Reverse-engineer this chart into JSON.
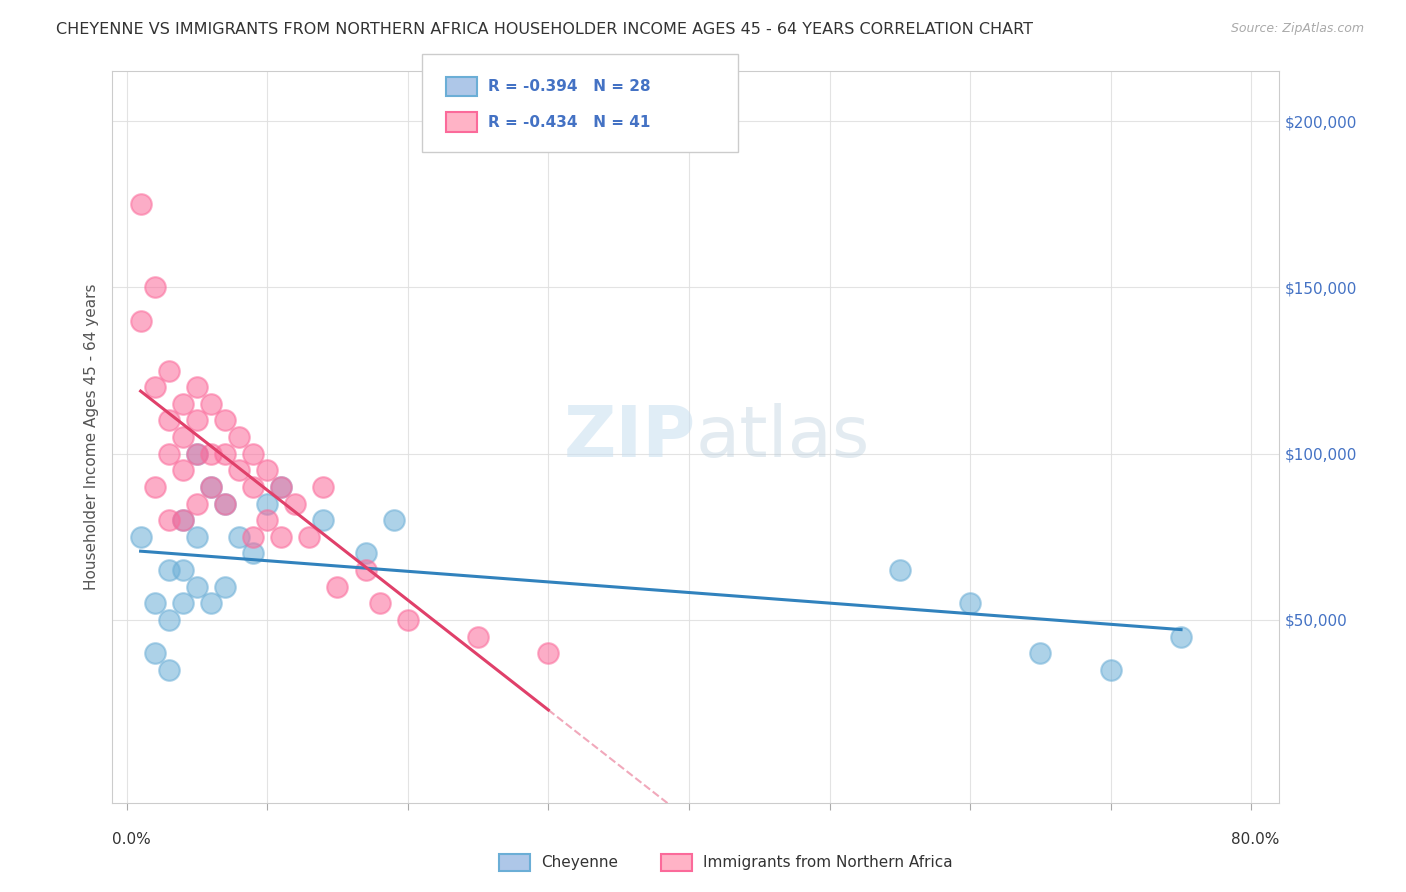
{
  "title": "CHEYENNE VS IMMIGRANTS FROM NORTHERN AFRICA HOUSEHOLDER INCOME AGES 45 - 64 YEARS CORRELATION CHART",
  "source": "Source: ZipAtlas.com",
  "ylabel": "Householder Income Ages 45 - 64 years",
  "cheyenne_R": -0.394,
  "cheyenne_N": 28,
  "immigrants_R": -0.434,
  "immigrants_N": 41,
  "cheyenne_color": "#6baed6",
  "immigrants_color": "#fb6a9a",
  "cheyenne_line_color": "#3182bd",
  "immigrants_line_color": "#e0406a",
  "watermark_zip": "ZIP",
  "watermark_atlas": "atlas",
  "cheyenne_x": [
    0.01,
    0.02,
    0.02,
    0.03,
    0.03,
    0.03,
    0.04,
    0.04,
    0.04,
    0.05,
    0.05,
    0.05,
    0.06,
    0.06,
    0.07,
    0.07,
    0.08,
    0.09,
    0.1,
    0.11,
    0.14,
    0.17,
    0.19,
    0.55,
    0.6,
    0.65,
    0.7,
    0.75
  ],
  "cheyenne_y": [
    75000,
    55000,
    40000,
    65000,
    50000,
    35000,
    80000,
    65000,
    55000,
    100000,
    75000,
    60000,
    90000,
    55000,
    85000,
    60000,
    75000,
    70000,
    85000,
    90000,
    80000,
    70000,
    80000,
    65000,
    55000,
    40000,
    35000,
    45000
  ],
  "immigrants_x": [
    0.01,
    0.01,
    0.02,
    0.02,
    0.02,
    0.03,
    0.03,
    0.03,
    0.03,
    0.04,
    0.04,
    0.04,
    0.04,
    0.05,
    0.05,
    0.05,
    0.05,
    0.06,
    0.06,
    0.06,
    0.07,
    0.07,
    0.07,
    0.08,
    0.08,
    0.09,
    0.09,
    0.09,
    0.1,
    0.1,
    0.11,
    0.11,
    0.12,
    0.13,
    0.14,
    0.15,
    0.17,
    0.18,
    0.2,
    0.25,
    0.3
  ],
  "immigrants_y": [
    175000,
    140000,
    150000,
    120000,
    90000,
    125000,
    110000,
    100000,
    80000,
    115000,
    105000,
    95000,
    80000,
    120000,
    110000,
    100000,
    85000,
    115000,
    100000,
    90000,
    110000,
    100000,
    85000,
    105000,
    95000,
    100000,
    90000,
    75000,
    95000,
    80000,
    90000,
    75000,
    85000,
    75000,
    90000,
    60000,
    65000,
    55000,
    50000,
    45000,
    40000
  ],
  "xlim": [
    -0.01,
    0.82
  ],
  "ylim": [
    -5000,
    215000
  ],
  "background_color": "#ffffff",
  "grid_color": "#e0e0e0",
  "ytick_vals": [
    50000,
    100000,
    150000,
    200000
  ],
  "ytick_labels": [
    "$50,000",
    "$100,000",
    "$150,000",
    "$200,000"
  ]
}
